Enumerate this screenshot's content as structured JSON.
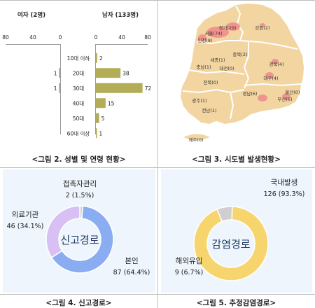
{
  "captions": {
    "fig2": "<그림 2. 성별 및 연령 현황>",
    "fig3": "<그림 3. 시도별 발생현황>",
    "fig4": "<그림 4. 신고경로>",
    "fig5": "<그림 5. 추정감염경로>"
  },
  "chart_data": [
    {
      "type": "bar",
      "orientation": "horizontal",
      "categories": [
        "10대 이하",
        "20대",
        "30대",
        "40대",
        "50대",
        "60대 이상"
      ],
      "female": {
        "title": "여자 (2명)",
        "values": [
          0,
          1,
          1,
          0,
          0,
          0
        ],
        "ticks": [
          "80",
          "40",
          "0"
        ],
        "xlim": [
          0,
          80
        ],
        "color": "#e8804a"
      },
      "male": {
        "title": "남자 (133명)",
        "values": [
          2,
          38,
          72,
          15,
          5,
          1
        ],
        "ticks": [
          "0",
          "40",
          "80"
        ],
        "xlim": [
          0,
          80
        ],
        "color": "#b3ad57"
      }
    },
    {
      "type": "pie",
      "variant": "donut",
      "center_label": "신고경로",
      "slices": [
        {
          "name": "접촉자관리",
          "value": 2,
          "text": "2 (1.5%)",
          "color": "#d2d2d2"
        },
        {
          "name": "본인",
          "value": 87,
          "text": "87 (64.4%)",
          "color": "#8aadf2"
        },
        {
          "name": "의료기관",
          "value": 46,
          "text": "46 (34.1%)",
          "color": "#d8bff4"
        }
      ]
    },
    {
      "type": "pie",
      "variant": "donut",
      "center_label": "감염경로",
      "slices": [
        {
          "name": "국내발생",
          "value": 126,
          "text": "126 (93.3%)",
          "color": "#f7d56e"
        },
        {
          "name": "해외유입",
          "value": 9,
          "text": "9 (6.7%)",
          "color": "#cfcfcf"
        }
      ]
    }
  ],
  "map": {
    "title_hidden": "",
    "regions": [
      {
        "name": "경기",
        "count": "29",
        "label": "경기(29)"
      },
      {
        "name": "강원",
        "count": "2",
        "label": "강원(2)"
      },
      {
        "name": "서울",
        "count": "74",
        "label": "서울(74)"
      },
      {
        "name": "인천",
        "count": "8",
        "label": "인천(8)"
      },
      {
        "name": "충북",
        "count": "2",
        "label": "충북(2)"
      },
      {
        "name": "세종",
        "count": "1",
        "label": "세종(1)"
      },
      {
        "name": "충남",
        "count": "1",
        "label": "충남(1)"
      },
      {
        "name": "대전",
        "count": "0",
        "label": "대전(0)"
      },
      {
        "name": "경북",
        "count": "4",
        "label": "경북(4)"
      },
      {
        "name": "대구",
        "count": "4",
        "label": "대구(4)"
      },
      {
        "name": "전북",
        "count": "0",
        "label": "전북(0)"
      },
      {
        "name": "울산",
        "count": "0",
        "label": "울산(0)"
      },
      {
        "name": "광주",
        "count": "1",
        "label": "광주(1)"
      },
      {
        "name": "경남",
        "count": "6",
        "label": "경남(6)"
      },
      {
        "name": "부산",
        "count": "6",
        "label": "부산(6)"
      },
      {
        "name": "전남",
        "count": "1",
        "label": "전남(1)"
      },
      {
        "name": "제주",
        "count": "0",
        "label": "제주(0)"
      }
    ]
  }
}
